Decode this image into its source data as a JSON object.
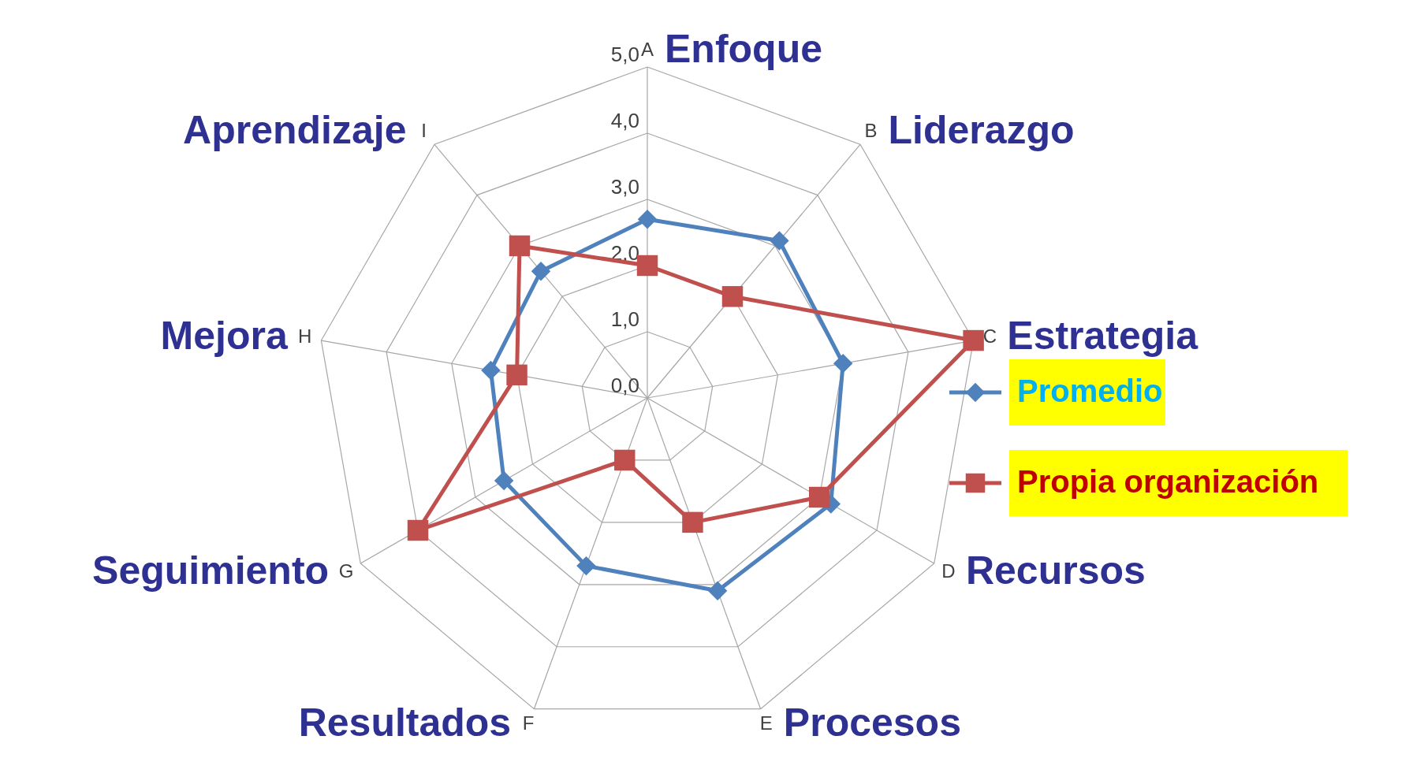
{
  "chart_data": {
    "type": "radar",
    "categories": [
      "A",
      "B",
      "C",
      "D",
      "E",
      "F",
      "G",
      "H",
      "I"
    ],
    "annotations": [
      "Enfoque",
      "Liderazgo",
      "Estrategia",
      "Recursos",
      "Procesos",
      "Resultados",
      "Seguimiento",
      "Mejora",
      "Aprendizaje"
    ],
    "ylim": [
      0,
      5
    ],
    "yticks": [
      {
        "value": 0,
        "label": "0,0"
      },
      {
        "value": 1,
        "label": "1,0"
      },
      {
        "value": 2,
        "label": "2,0"
      },
      {
        "value": 3,
        "label": "3,0"
      },
      {
        "value": 4,
        "label": "4,0"
      },
      {
        "value": 5,
        "label": "5,0"
      }
    ],
    "grid": true,
    "legend": "right",
    "series": [
      {
        "name": "Promedio",
        "color": "#4f81bd",
        "marker": "diamond",
        "values": [
          2.7,
          3.1,
          3.0,
          3.2,
          3.1,
          2.7,
          2.5,
          2.4,
          2.5
        ]
      },
      {
        "name": "Propia organización",
        "color": "#c0504d",
        "marker": "square",
        "values": [
          2.0,
          2.0,
          5.0,
          3.0,
          2.0,
          1.0,
          4.0,
          2.0,
          3.0
        ]
      }
    ]
  }
}
